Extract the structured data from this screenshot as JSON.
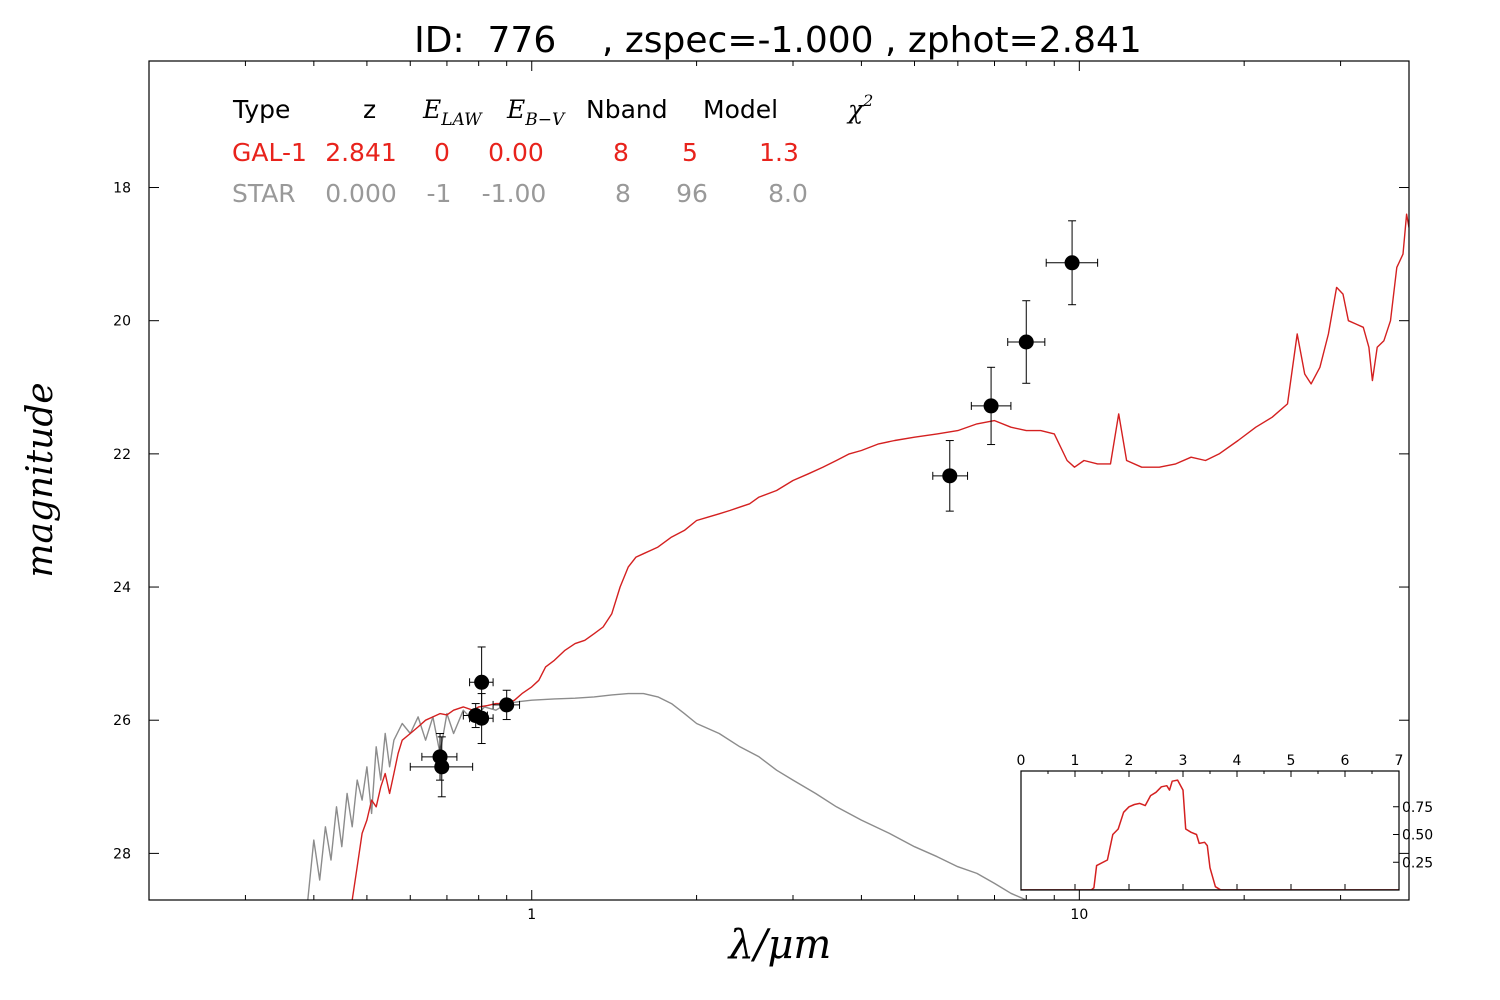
{
  "chart_data": [
    {
      "type": "line",
      "title": "ID:  776    , zspec=-1.000 , zphot=2.841",
      "xlabel": "λ/μm",
      "ylabel": "magnitude",
      "x_scale": "log",
      "xlim": [
        0.2,
        40
      ],
      "ylim": [
        28.7,
        16.1
      ],
      "y_inverted": true,
      "grid": false,
      "x_ticks": [
        {
          "value": 1,
          "label": "1"
        },
        {
          "value": 10,
          "label": "10"
        }
      ],
      "y_ticks": [
        {
          "value": 18,
          "label": "18"
        },
        {
          "value": 20,
          "label": "20"
        },
        {
          "value": 22,
          "label": "22"
        },
        {
          "value": 24,
          "label": "24"
        },
        {
          "value": 26,
          "label": "26"
        },
        {
          "value": 28,
          "label": "28"
        }
      ],
      "legend_table": {
        "headers": {
          "type": "Type",
          "z": "z",
          "elaw": "E",
          "elaw_sub": "LAW",
          "ebv": "E",
          "ebv_sub": "B−V",
          "nband": "Nband",
          "model": "Model",
          "chi": "χ",
          "chi_sup": "2"
        },
        "rows": [
          {
            "type": "GAL-1",
            "z": "2.841",
            "elaw": "0",
            "ebv": "0.00",
            "nband": "8",
            "model": "5",
            "chi2": "1.3",
            "color": "#e8231c"
          },
          {
            "type": "STAR",
            "z": "0.000",
            "elaw": "-1",
            "ebv": "-1.00",
            "nband": "8",
            "model": "96",
            "chi2": "8.0",
            "color": "#999999"
          }
        ]
      },
      "series": [
        {
          "color": "#d42020",
          "points": [
            [
              0.47,
              28.7
            ],
            [
              0.48,
              28.2
            ],
            [
              0.49,
              27.7
            ],
            [
              0.5,
              27.5
            ],
            [
              0.51,
              27.2
            ],
            [
              0.52,
              27.3
            ],
            [
              0.53,
              27.0
            ],
            [
              0.54,
              26.8
            ],
            [
              0.55,
              27.1
            ],
            [
              0.56,
              26.8
            ],
            [
              0.57,
              26.5
            ],
            [
              0.58,
              26.3
            ],
            [
              0.6,
              26.2
            ],
            [
              0.62,
              26.1
            ],
            [
              0.64,
              26.0
            ],
            [
              0.66,
              25.95
            ],
            [
              0.68,
              25.9
            ],
            [
              0.7,
              25.92
            ],
            [
              0.72,
              25.85
            ],
            [
              0.75,
              25.8
            ],
            [
              0.78,
              25.85
            ],
            [
              0.8,
              25.8
            ],
            [
              0.83,
              25.78
            ],
            [
              0.86,
              25.75
            ],
            [
              0.9,
              25.75
            ],
            [
              0.93,
              25.7
            ],
            [
              0.96,
              25.6
            ],
            [
              1.0,
              25.5
            ],
            [
              1.03,
              25.4
            ],
            [
              1.06,
              25.2
            ],
            [
              1.1,
              25.1
            ],
            [
              1.15,
              24.95
            ],
            [
              1.2,
              24.85
            ],
            [
              1.25,
              24.8
            ],
            [
              1.3,
              24.7
            ],
            [
              1.35,
              24.6
            ],
            [
              1.4,
              24.4
            ],
            [
              1.45,
              24.0
            ],
            [
              1.5,
              23.7
            ],
            [
              1.55,
              23.55
            ],
            [
              1.6,
              23.5
            ],
            [
              1.65,
              23.45
            ],
            [
              1.7,
              23.4
            ],
            [
              1.8,
              23.25
            ],
            [
              1.9,
              23.15
            ],
            [
              2.0,
              23.0
            ],
            [
              2.1,
              22.95
            ],
            [
              2.2,
              22.9
            ],
            [
              2.3,
              22.85
            ],
            [
              2.4,
              22.8
            ],
            [
              2.5,
              22.75
            ],
            [
              2.6,
              22.65
            ],
            [
              2.8,
              22.55
            ],
            [
              3.0,
              22.4
            ],
            [
              3.2,
              22.3
            ],
            [
              3.4,
              22.2
            ],
            [
              3.6,
              22.1
            ],
            [
              3.8,
              22.0
            ],
            [
              4.0,
              21.95
            ],
            [
              4.3,
              21.85
            ],
            [
              4.6,
              21.8
            ],
            [
              5.0,
              21.75
            ],
            [
              5.5,
              21.7
            ],
            [
              6.0,
              21.65
            ],
            [
              6.5,
              21.55
            ],
            [
              7.0,
              21.5
            ],
            [
              7.5,
              21.6
            ],
            [
              8.0,
              21.65
            ],
            [
              8.5,
              21.65
            ],
            [
              9.0,
              21.7
            ],
            [
              9.5,
              22.1
            ],
            [
              9.8,
              22.2
            ],
            [
              10.2,
              22.1
            ],
            [
              10.8,
              22.15
            ],
            [
              11.4,
              22.15
            ],
            [
              11.8,
              21.4
            ],
            [
              12.2,
              22.1
            ],
            [
              13.0,
              22.2
            ],
            [
              14.0,
              22.2
            ],
            [
              15.0,
              22.15
            ],
            [
              16.0,
              22.05
            ],
            [
              17.0,
              22.1
            ],
            [
              18.0,
              22.0
            ],
            [
              19.5,
              21.8
            ],
            [
              21.0,
              21.6
            ],
            [
              22.5,
              21.45
            ],
            [
              24.0,
              21.25
            ],
            [
              25.0,
              20.2
            ],
            [
              25.8,
              20.8
            ],
            [
              26.5,
              20.95
            ],
            [
              27.5,
              20.7
            ],
            [
              28.5,
              20.2
            ],
            [
              29.5,
              19.5
            ],
            [
              30.3,
              19.6
            ],
            [
              31.0,
              20.0
            ],
            [
              32.0,
              20.05
            ],
            [
              33.0,
              20.1
            ],
            [
              33.8,
              20.4
            ],
            [
              34.3,
              20.9
            ],
            [
              35.0,
              20.4
            ],
            [
              36.0,
              20.3
            ],
            [
              37.0,
              20.0
            ],
            [
              38.0,
              19.2
            ],
            [
              39.0,
              19.0
            ],
            [
              39.6,
              18.4
            ],
            [
              40.0,
              18.6
            ]
          ]
        },
        {
          "color": "#8c8c8c",
          "points": [
            [
              0.39,
              28.7
            ],
            [
              0.4,
              27.8
            ],
            [
              0.41,
              28.4
            ],
            [
              0.42,
              27.6
            ],
            [
              0.43,
              28.1
            ],
            [
              0.44,
              27.3
            ],
            [
              0.45,
              27.9
            ],
            [
              0.46,
              27.1
            ],
            [
              0.47,
              27.6
            ],
            [
              0.48,
              26.9
            ],
            [
              0.49,
              27.2
            ],
            [
              0.5,
              26.7
            ],
            [
              0.51,
              27.4
            ],
            [
              0.52,
              26.4
            ],
            [
              0.53,
              26.9
            ],
            [
              0.54,
              26.2
            ],
            [
              0.55,
              26.7
            ],
            [
              0.56,
              26.3
            ],
            [
              0.58,
              26.05
            ],
            [
              0.6,
              26.2
            ],
            [
              0.62,
              25.95
            ],
            [
              0.64,
              26.3
            ],
            [
              0.66,
              25.95
            ],
            [
              0.68,
              26.5
            ],
            [
              0.7,
              25.9
            ],
            [
              0.72,
              26.2
            ],
            [
              0.75,
              25.85
            ],
            [
              0.78,
              26.0
            ],
            [
              0.82,
              25.8
            ],
            [
              0.86,
              25.85
            ],
            [
              0.9,
              25.75
            ],
            [
              0.95,
              25.72
            ],
            [
              1.0,
              25.7
            ],
            [
              1.1,
              25.68
            ],
            [
              1.2,
              25.67
            ],
            [
              1.3,
              25.65
            ],
            [
              1.4,
              25.62
            ],
            [
              1.5,
              25.6
            ],
            [
              1.6,
              25.6
            ],
            [
              1.7,
              25.65
            ],
            [
              1.8,
              25.75
            ],
            [
              1.9,
              25.9
            ],
            [
              2.0,
              26.05
            ],
            [
              2.2,
              26.2
            ],
            [
              2.4,
              26.4
            ],
            [
              2.6,
              26.55
            ],
            [
              2.8,
              26.75
            ],
            [
              3.0,
              26.9
            ],
            [
              3.3,
              27.1
            ],
            [
              3.6,
              27.3
            ],
            [
              4.0,
              27.5
            ],
            [
              4.5,
              27.7
            ],
            [
              5.0,
              27.9
            ],
            [
              5.5,
              28.05
            ],
            [
              6.0,
              28.2
            ],
            [
              6.5,
              28.3
            ],
            [
              7.0,
              28.45
            ],
            [
              7.5,
              28.6
            ],
            [
              8.0,
              28.7
            ]
          ]
        }
      ],
      "photometry": [
        {
          "x": 0.68,
          "y": 26.55,
          "xerr": [
            0.63,
            0.73
          ],
          "yerr": [
            26.2,
            26.9
          ]
        },
        {
          "x": 0.685,
          "y": 26.7,
          "xerr": [
            0.6,
            0.78
          ],
          "yerr": [
            26.25,
            27.15
          ]
        },
        {
          "x": 0.79,
          "y": 25.93,
          "xerr": [
            0.75,
            0.83
          ],
          "yerr": [
            25.75,
            26.11
          ]
        },
        {
          "x": 0.81,
          "y": 25.97,
          "xerr": [
            0.77,
            0.85
          ],
          "yerr": [
            25.6,
            26.35
          ]
        },
        {
          "x": 0.81,
          "y": 25.43,
          "xerr": [
            0.77,
            0.85
          ],
          "yerr": [
            24.9,
            25.96
          ]
        },
        {
          "x": 0.9,
          "y": 25.77,
          "xerr": [
            0.85,
            0.95
          ],
          "yerr": [
            25.55,
            25.99
          ]
        },
        {
          "x": 5.8,
          "y": 22.33,
          "xerr": [
            5.4,
            6.25
          ],
          "yerr": [
            21.8,
            22.86
          ]
        },
        {
          "x": 6.9,
          "y": 21.28,
          "xerr": [
            6.35,
            7.5
          ],
          "yerr": [
            20.7,
            21.86
          ]
        },
        {
          "x": 8.0,
          "y": 20.32,
          "xerr": [
            7.4,
            8.65
          ],
          "yerr": [
            19.7,
            20.94
          ]
        },
        {
          "x": 9.7,
          "y": 19.13,
          "xerr": [
            8.7,
            10.8
          ],
          "yerr": [
            18.5,
            19.76
          ]
        }
      ]
    },
    {
      "type": "line",
      "xlim": [
        0,
        7
      ],
      "ylim": [
        0,
        1.0
      ],
      "x_ticks": [
        0,
        1,
        2,
        3,
        4,
        5,
        6,
        7
      ],
      "y_ticks": [
        {
          "value": 0.25,
          "label": "0.25"
        },
        {
          "value": 0.5,
          "label": "0.50"
        },
        {
          "value": 0.75,
          "label": "0.75"
        }
      ],
      "series": [
        {
          "color": "#d42020",
          "points": [
            [
              0,
              0
            ],
            [
              1.3,
              0
            ],
            [
              1.35,
              0.02
            ],
            [
              1.4,
              0.22
            ],
            [
              1.6,
              0.27
            ],
            [
              1.7,
              0.5
            ],
            [
              1.8,
              0.55
            ],
            [
              1.9,
              0.7
            ],
            [
              2.0,
              0.75
            ],
            [
              2.1,
              0.77
            ],
            [
              2.2,
              0.78
            ],
            [
              2.3,
              0.76
            ],
            [
              2.4,
              0.85
            ],
            [
              2.5,
              0.88
            ],
            [
              2.6,
              0.93
            ],
            [
              2.7,
              0.94
            ],
            [
              2.75,
              0.9
            ],
            [
              2.8,
              0.98
            ],
            [
              2.9,
              0.99
            ],
            [
              3.0,
              0.9
            ],
            [
              3.05,
              0.55
            ],
            [
              3.15,
              0.52
            ],
            [
              3.25,
              0.5
            ],
            [
              3.3,
              0.42
            ],
            [
              3.4,
              0.43
            ],
            [
              3.45,
              0.4
            ],
            [
              3.5,
              0.2
            ],
            [
              3.6,
              0.03
            ],
            [
              3.7,
              0
            ],
            [
              7,
              0
            ]
          ]
        },
        {
          "color": "#333333",
          "points": [
            [
              0,
              0
            ],
            [
              7,
              0
            ]
          ]
        }
      ]
    }
  ]
}
